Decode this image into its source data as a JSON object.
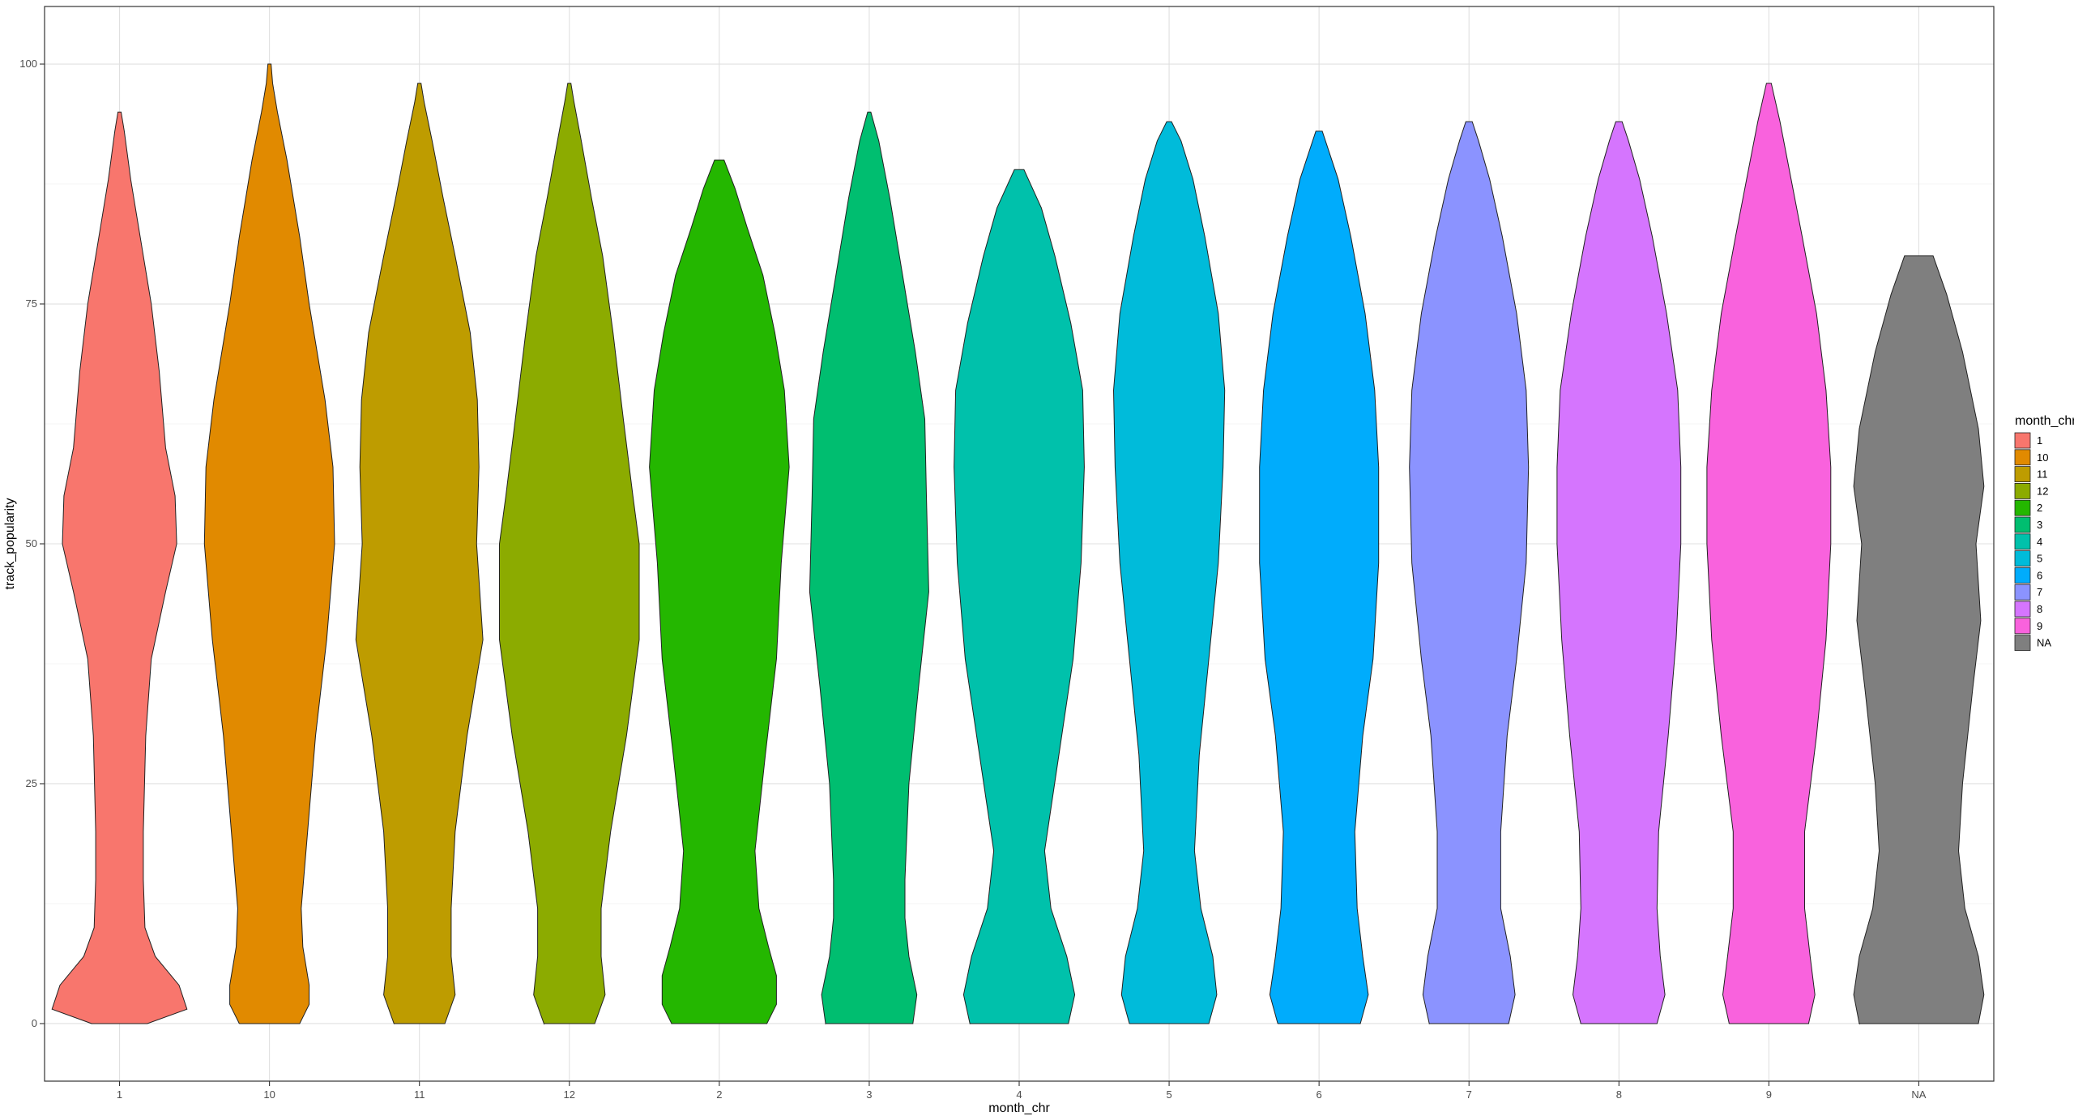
{
  "chart_data": {
    "type": "violin",
    "title": "",
    "xlabel": "month_chr",
    "ylabel": "track_popularity",
    "ylim": [
      -6,
      106
    ],
    "yticks": [
      0,
      25,
      50,
      75,
      100
    ],
    "grid": true,
    "legend": {
      "title": "month_chr",
      "position": "right"
    },
    "categories": [
      "1",
      "10",
      "11",
      "12",
      "2",
      "3",
      "4",
      "5",
      "6",
      "7",
      "8",
      "9",
      "NA"
    ],
    "series": [
      {
        "name": "1",
        "color": "#F8766D",
        "min": 0,
        "max": 95,
        "density": [
          [
            0,
            0.35
          ],
          [
            1.5,
            0.85
          ],
          [
            4,
            0.75
          ],
          [
            7,
            0.45
          ],
          [
            10,
            0.32
          ],
          [
            15,
            0.3
          ],
          [
            20,
            0.3
          ],
          [
            30,
            0.33
          ],
          [
            38,
            0.4
          ],
          [
            45,
            0.58
          ],
          [
            50,
            0.72
          ],
          [
            55,
            0.7
          ],
          [
            60,
            0.58
          ],
          [
            68,
            0.5
          ],
          [
            75,
            0.4
          ],
          [
            82,
            0.26
          ],
          [
            88,
            0.14
          ],
          [
            93,
            0.06
          ],
          [
            95,
            0.02
          ]
        ]
      },
      {
        "name": "10",
        "color": "#E18A00",
        "min": 0,
        "max": 100,
        "density": [
          [
            0,
            0.38
          ],
          [
            2,
            0.5
          ],
          [
            4,
            0.5
          ],
          [
            8,
            0.42
          ],
          [
            12,
            0.4
          ],
          [
            20,
            0.48
          ],
          [
            30,
            0.58
          ],
          [
            40,
            0.72
          ],
          [
            50,
            0.82
          ],
          [
            58,
            0.8
          ],
          [
            65,
            0.7
          ],
          [
            75,
            0.5
          ],
          [
            82,
            0.38
          ],
          [
            90,
            0.22
          ],
          [
            95,
            0.1
          ],
          [
            98,
            0.04
          ],
          [
            100,
            0.02
          ]
        ]
      },
      {
        "name": "11",
        "color": "#BE9C00",
        "min": 0,
        "max": 98,
        "density": [
          [
            0,
            0.32
          ],
          [
            3,
            0.45
          ],
          [
            7,
            0.4
          ],
          [
            12,
            0.4
          ],
          [
            20,
            0.45
          ],
          [
            30,
            0.6
          ],
          [
            40,
            0.8
          ],
          [
            50,
            0.72
          ],
          [
            58,
            0.75
          ],
          [
            65,
            0.73
          ],
          [
            72,
            0.64
          ],
          [
            80,
            0.45
          ],
          [
            86,
            0.3
          ],
          [
            92,
            0.16
          ],
          [
            96,
            0.06
          ],
          [
            98,
            0.02
          ]
        ]
      },
      {
        "name": "12",
        "color": "#8CAB00",
        "min": 0,
        "max": 98,
        "density": [
          [
            0,
            0.32
          ],
          [
            3,
            0.45
          ],
          [
            7,
            0.4
          ],
          [
            12,
            0.4
          ],
          [
            20,
            0.52
          ],
          [
            30,
            0.72
          ],
          [
            40,
            0.88
          ],
          [
            50,
            0.88
          ],
          [
            55,
            0.8
          ],
          [
            63,
            0.68
          ],
          [
            72,
            0.55
          ],
          [
            80,
            0.42
          ],
          [
            86,
            0.28
          ],
          [
            92,
            0.15
          ],
          [
            96,
            0.06
          ],
          [
            98,
            0.02
          ]
        ]
      },
      {
        "name": "2",
        "color": "#24B700",
        "min": 0,
        "max": 90,
        "density": [
          [
            0,
            0.6
          ],
          [
            2,
            0.72
          ],
          [
            5,
            0.72
          ],
          [
            8,
            0.62
          ],
          [
            12,
            0.5
          ],
          [
            18,
            0.45
          ],
          [
            28,
            0.58
          ],
          [
            38,
            0.72
          ],
          [
            48,
            0.78
          ],
          [
            58,
            0.88
          ],
          [
            66,
            0.82
          ],
          [
            72,
            0.7
          ],
          [
            78,
            0.55
          ],
          [
            83,
            0.35
          ],
          [
            87,
            0.2
          ],
          [
            90,
            0.06
          ]
        ]
      },
      {
        "name": "3",
        "color": "#00BE70",
        "min": 0,
        "max": 95,
        "density": [
          [
            0,
            0.55
          ],
          [
            3,
            0.6
          ],
          [
            7,
            0.5
          ],
          [
            11,
            0.45
          ],
          [
            15,
            0.45
          ],
          [
            25,
            0.5
          ],
          [
            35,
            0.62
          ],
          [
            45,
            0.75
          ],
          [
            55,
            0.72
          ],
          [
            63,
            0.7
          ],
          [
            70,
            0.58
          ],
          [
            78,
            0.42
          ],
          [
            86,
            0.26
          ],
          [
            92,
            0.12
          ],
          [
            95,
            0.02
          ]
        ]
      },
      {
        "name": "4",
        "color": "#00C1AB",
        "min": 0,
        "max": 89,
        "density": [
          [
            0,
            0.62
          ],
          [
            3,
            0.7
          ],
          [
            7,
            0.6
          ],
          [
            12,
            0.4
          ],
          [
            18,
            0.32
          ],
          [
            28,
            0.5
          ],
          [
            38,
            0.68
          ],
          [
            48,
            0.78
          ],
          [
            58,
            0.82
          ],
          [
            66,
            0.8
          ],
          [
            73,
            0.65
          ],
          [
            80,
            0.45
          ],
          [
            85,
            0.28
          ],
          [
            89,
            0.06
          ]
        ]
      },
      {
        "name": "5",
        "color": "#00BBDA",
        "min": 0,
        "max": 94,
        "density": [
          [
            0,
            0.5
          ],
          [
            3,
            0.6
          ],
          [
            7,
            0.55
          ],
          [
            12,
            0.4
          ],
          [
            18,
            0.32
          ],
          [
            28,
            0.38
          ],
          [
            38,
            0.5
          ],
          [
            48,
            0.62
          ],
          [
            58,
            0.68
          ],
          [
            66,
            0.7
          ],
          [
            74,
            0.62
          ],
          [
            82,
            0.45
          ],
          [
            88,
            0.3
          ],
          [
            92,
            0.15
          ],
          [
            94,
            0.03
          ]
        ]
      },
      {
        "name": "6",
        "color": "#00ACFC",
        "min": 0,
        "max": 93,
        "density": [
          [
            0,
            0.52
          ],
          [
            3,
            0.62
          ],
          [
            7,
            0.55
          ],
          [
            12,
            0.48
          ],
          [
            20,
            0.45
          ],
          [
            30,
            0.55
          ],
          [
            38,
            0.68
          ],
          [
            48,
            0.75
          ],
          [
            58,
            0.75
          ],
          [
            66,
            0.7
          ],
          [
            74,
            0.58
          ],
          [
            82,
            0.4
          ],
          [
            88,
            0.24
          ],
          [
            93,
            0.04
          ]
        ]
      },
      {
        "name": "7",
        "color": "#8B93FF",
        "min": 0,
        "max": 94,
        "density": [
          [
            0,
            0.5
          ],
          [
            3,
            0.58
          ],
          [
            7,
            0.52
          ],
          [
            12,
            0.4
          ],
          [
            20,
            0.4
          ],
          [
            30,
            0.48
          ],
          [
            38,
            0.6
          ],
          [
            48,
            0.72
          ],
          [
            58,
            0.75
          ],
          [
            66,
            0.72
          ],
          [
            74,
            0.6
          ],
          [
            82,
            0.42
          ],
          [
            88,
            0.26
          ],
          [
            92,
            0.12
          ],
          [
            94,
            0.04
          ]
        ]
      },
      {
        "name": "8",
        "color": "#D575FE",
        "min": 0,
        "max": 94,
        "density": [
          [
            0,
            0.48
          ],
          [
            3,
            0.58
          ],
          [
            7,
            0.52
          ],
          [
            12,
            0.48
          ],
          [
            20,
            0.5
          ],
          [
            30,
            0.62
          ],
          [
            40,
            0.72
          ],
          [
            50,
            0.78
          ],
          [
            58,
            0.78
          ],
          [
            66,
            0.74
          ],
          [
            74,
            0.6
          ],
          [
            82,
            0.42
          ],
          [
            88,
            0.26
          ],
          [
            92,
            0.12
          ],
          [
            94,
            0.04
          ]
        ]
      },
      {
        "name": "9",
        "color": "#F962DD",
        "min": 0,
        "max": 98,
        "density": [
          [
            0,
            0.5
          ],
          [
            3,
            0.58
          ],
          [
            7,
            0.52
          ],
          [
            12,
            0.45
          ],
          [
            20,
            0.45
          ],
          [
            30,
            0.6
          ],
          [
            40,
            0.72
          ],
          [
            50,
            0.78
          ],
          [
            58,
            0.78
          ],
          [
            66,
            0.72
          ],
          [
            74,
            0.6
          ],
          [
            82,
            0.42
          ],
          [
            88,
            0.28
          ],
          [
            94,
            0.14
          ],
          [
            98,
            0.03
          ]
        ]
      },
      {
        "name": "NA",
        "color": "#7F7F7F",
        "min": 0,
        "max": 80,
        "density": [
          [
            0,
            0.75
          ],
          [
            3,
            0.82
          ],
          [
            7,
            0.75
          ],
          [
            12,
            0.58
          ],
          [
            18,
            0.5
          ],
          [
            25,
            0.55
          ],
          [
            35,
            0.68
          ],
          [
            42,
            0.78
          ],
          [
            50,
            0.72
          ],
          [
            56,
            0.82
          ],
          [
            62,
            0.75
          ],
          [
            70,
            0.55
          ],
          [
            76,
            0.35
          ],
          [
            80,
            0.18
          ]
        ]
      }
    ]
  }
}
